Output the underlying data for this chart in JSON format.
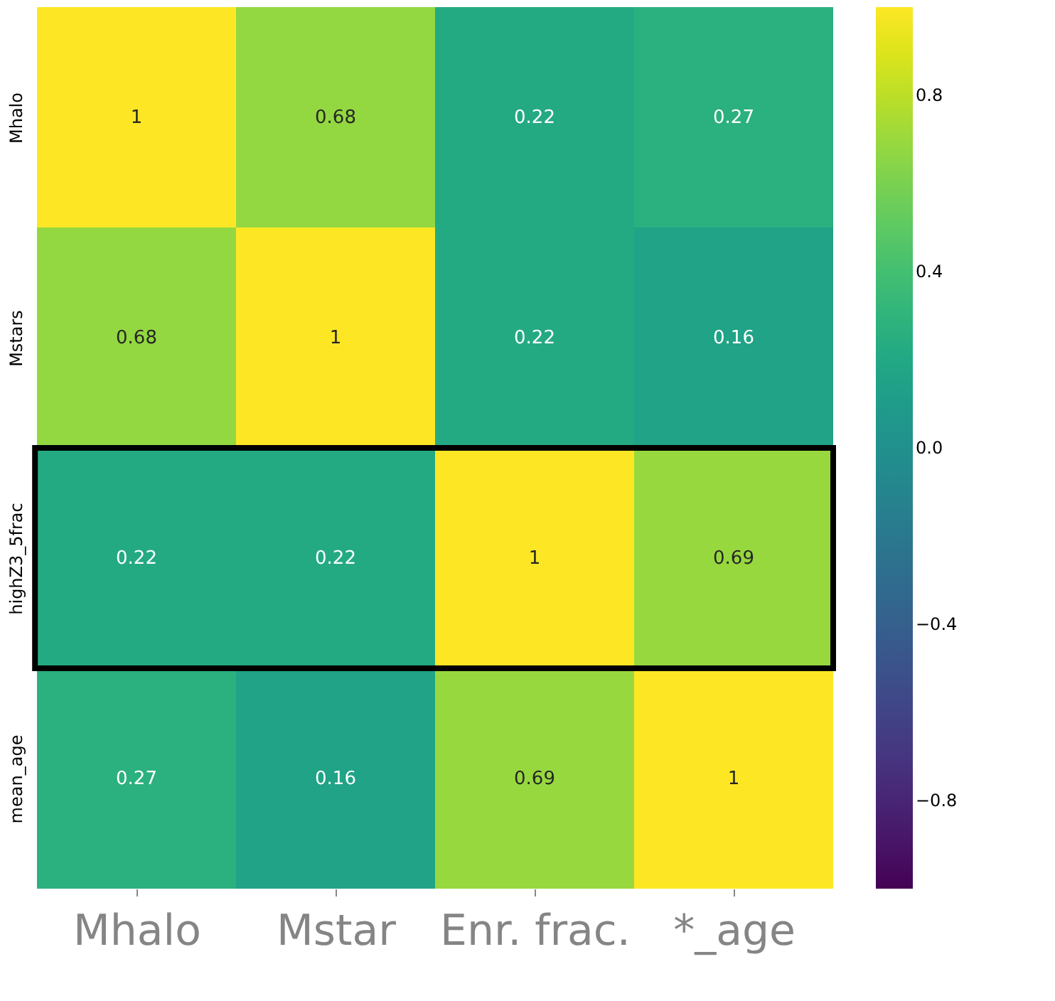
{
  "chart_data": {
    "type": "heatmap",
    "categories": [
      "Mhalo",
      "Mstar",
      "Enr. frac.",
      "*_age"
    ],
    "y_categories": [
      "Mhalo",
      "Mstars",
      "highZ3_5frac",
      "mean_age"
    ],
    "cells": [
      [
        1,
        0.68,
        0.22,
        0.27
      ],
      [
        0.68,
        1,
        0.22,
        0.16
      ],
      [
        0.22,
        0.22,
        1,
        0.69
      ],
      [
        0.27,
        0.16,
        0.69,
        1
      ]
    ],
    "data_labels": true,
    "clim": [
      -1,
      1
    ],
    "cticks": [
      {
        "value": -0.8,
        "label": "−0.8"
      },
      {
        "value": -0.4,
        "label": "−0.4"
      },
      {
        "value": 0,
        "label": "0.0"
      },
      0.4,
      0.8
    ]
  }
}
